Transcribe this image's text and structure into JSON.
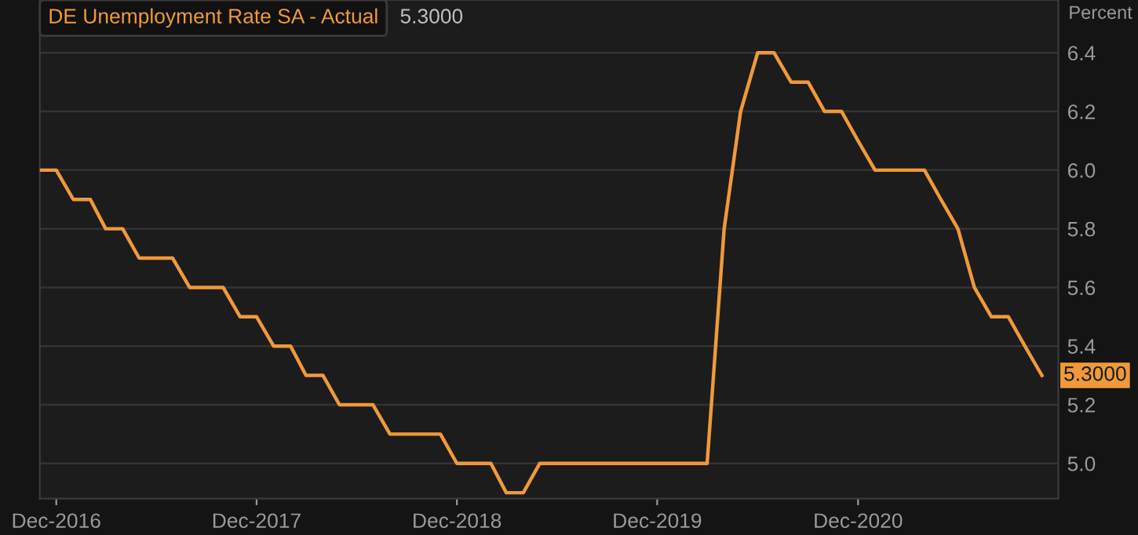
{
  "chart_data": {
    "type": "line",
    "ylabel": "Percent",
    "x": [
      "2016-11",
      "2016-12",
      "2017-01",
      "2017-02",
      "2017-03",
      "2017-04",
      "2017-05",
      "2017-06",
      "2017-07",
      "2017-08",
      "2017-09",
      "2017-10",
      "2017-11",
      "2017-12",
      "2018-01",
      "2018-02",
      "2018-03",
      "2018-04",
      "2018-05",
      "2018-06",
      "2018-07",
      "2018-08",
      "2018-09",
      "2018-10",
      "2018-11",
      "2018-12",
      "2019-01",
      "2019-02",
      "2019-03",
      "2019-04",
      "2019-05",
      "2019-06",
      "2019-07",
      "2019-08",
      "2019-09",
      "2019-10",
      "2019-11",
      "2019-12",
      "2020-01",
      "2020-02",
      "2020-03",
      "2020-04",
      "2020-05",
      "2020-06",
      "2020-07",
      "2020-08",
      "2020-09",
      "2020-10",
      "2020-11",
      "2020-12",
      "2021-01",
      "2021-02",
      "2021-03",
      "2021-04",
      "2021-05",
      "2021-06",
      "2021-07",
      "2021-08",
      "2021-09",
      "2021-10",
      "2021-11"
    ],
    "series": [
      {
        "name": "DE Unemployment Rate SA - Actual",
        "color": "#f0993a",
        "values": [
          6.0,
          6.0,
          5.9,
          5.9,
          5.8,
          5.8,
          5.7,
          5.7,
          5.7,
          5.6,
          5.6,
          5.6,
          5.5,
          5.5,
          5.4,
          5.4,
          5.3,
          5.3,
          5.2,
          5.2,
          5.2,
          5.1,
          5.1,
          5.1,
          5.1,
          5.0,
          5.0,
          5.0,
          4.9,
          4.9,
          5.0,
          5.0,
          5.0,
          5.0,
          5.0,
          5.0,
          5.0,
          5.0,
          5.0,
          5.0,
          5.0,
          5.8,
          6.2,
          6.4,
          6.4,
          6.3,
          6.3,
          6.2,
          6.2,
          6.1,
          6.0,
          6.0,
          6.0,
          6.0,
          5.9,
          5.8,
          5.6,
          5.5,
          5.5,
          5.4,
          5.3
        ]
      }
    ],
    "annotations": [
      {
        "text": "5.3000",
        "x": "2021-11",
        "y": 5.3
      },
      "5.3000"
    ],
    "xlim": [
      "2016-11-01",
      "2021-12-01"
    ],
    "xticks": [
      {
        "value": "2016-12",
        "label": "Dec-2016"
      },
      {
        "value": "2017-12",
        "label": "Dec-2017"
      },
      {
        "value": "2018-12",
        "label": "Dec-2018"
      },
      {
        "value": "2019-12",
        "label": "Dec-2019"
      },
      {
        "value": "2020-12",
        "label": "Dec-2020"
      }
    ],
    "ylim": [
      4.88,
      6.58
    ],
    "yticks": [
      {
        "value": 5.0,
        "label": "5.0"
      },
      {
        "value": 5.2,
        "label": "5.2"
      },
      {
        "value": 5.4,
        "label": "5.4"
      },
      {
        "value": 5.6,
        "label": "5.6"
      },
      {
        "value": 5.8,
        "label": "5.8"
      },
      {
        "value": 6.0,
        "label": "6.0"
      },
      {
        "value": 6.2,
        "label": "6.2"
      },
      {
        "value": 6.4,
        "label": "6.4"
      }
    ],
    "grid": "y",
    "legend": "top left",
    "marker": "none",
    "line_style": "solid"
  }
}
